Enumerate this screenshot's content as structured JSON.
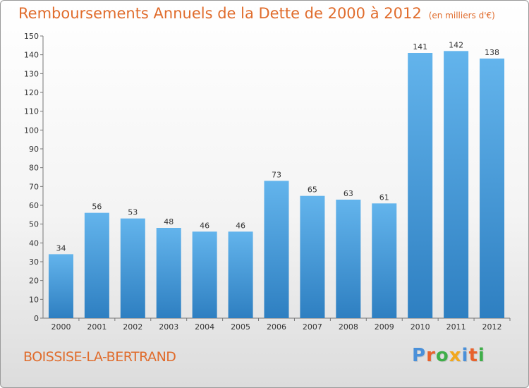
{
  "header": {
    "title": "Remboursements Annuels de la Dette de 2000 à 2012",
    "unit": "(en milliers d'€)"
  },
  "footer": {
    "commune": "BOISSISE-LA-BERTRAND",
    "logo": [
      "P",
      "r",
      "o",
      "x",
      "i",
      "t",
      "i"
    ]
  },
  "colors": {
    "title": "#e06c2c",
    "bar_top": "#63b4ec",
    "bar_bottom": "#2e7fc1",
    "logo": [
      "#4a90d9",
      "#e8622c",
      "#3fae49",
      "#f2a81d",
      "#4a90d9",
      "#e8622c",
      "#3fae49"
    ]
  },
  "chart_data": {
    "type": "bar",
    "categories": [
      "2000",
      "2001",
      "2002",
      "2003",
      "2004",
      "2005",
      "2006",
      "2007",
      "2008",
      "2009",
      "2010",
      "2011",
      "2012"
    ],
    "values": [
      34,
      56,
      53,
      48,
      46,
      46,
      73,
      65,
      63,
      61,
      141,
      142,
      138
    ],
    "title": "Remboursements Annuels de la Dette de 2000 à 2012",
    "xlabel": "",
    "ylabel": "",
    "ylim": [
      0,
      150
    ],
    "yticks": [
      0,
      10,
      20,
      30,
      40,
      50,
      60,
      70,
      80,
      90,
      100,
      110,
      120,
      130,
      140,
      150
    ],
    "grid": false,
    "data_labels": true
  }
}
